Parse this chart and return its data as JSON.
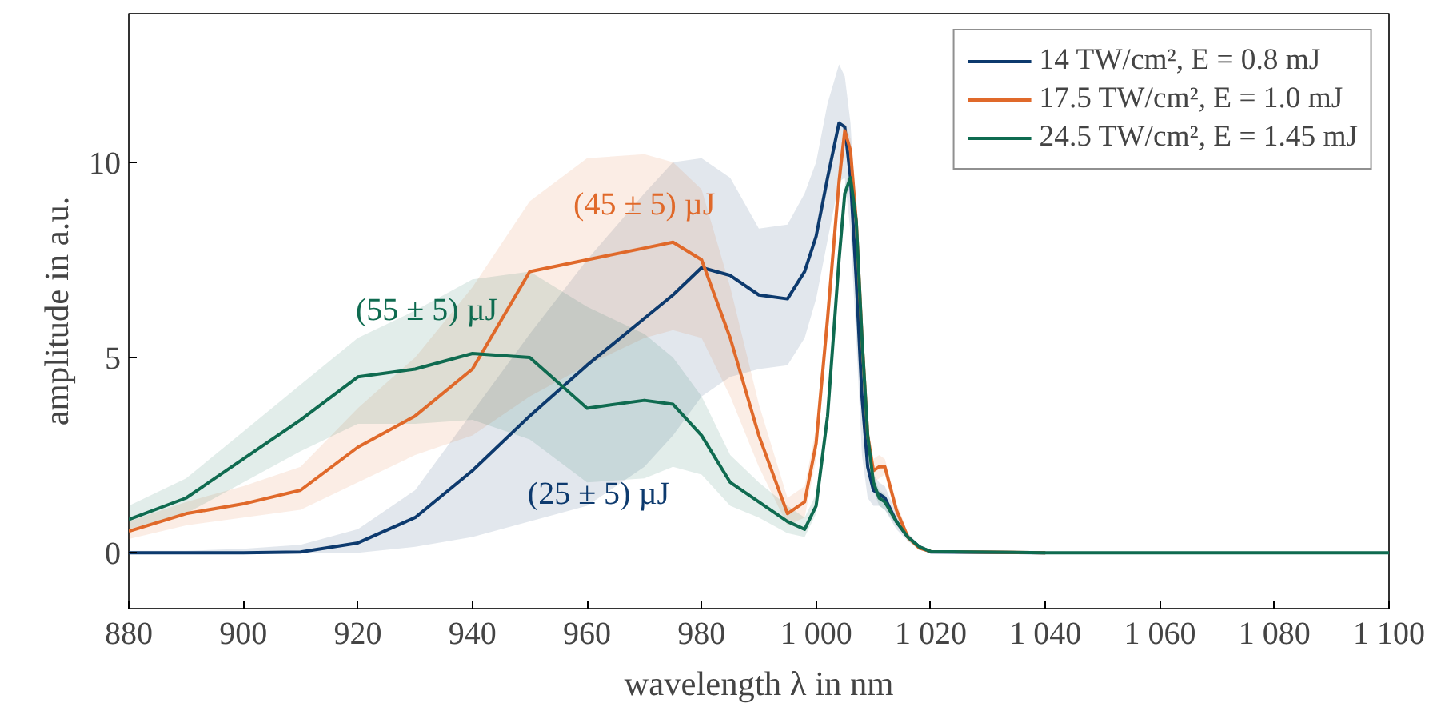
{
  "chart_data": {
    "type": "line",
    "xlabel": "wavelength λ in nm",
    "ylabel": "amplitude in a.u.",
    "x": [
      880,
      890,
      900,
      910,
      920,
      930,
      940,
      950,
      960,
      970,
      975,
      980,
      985,
      990,
      995,
      998,
      1000,
      1002,
      1004,
      1005,
      1006,
      1007,
      1008,
      1009,
      1010,
      1011,
      1012,
      1014,
      1016,
      1018,
      1020,
      1040,
      1060,
      1080,
      1100
    ],
    "series": [
      {
        "name": "14 TW/cm², E = 0.8 mJ",
        "color": "#0d3a6e",
        "values": [
          0,
          0,
          0,
          0.02,
          0.25,
          0.9,
          2.1,
          3.5,
          4.8,
          6.0,
          6.6,
          7.3,
          7.1,
          6.6,
          6.5,
          7.2,
          8.1,
          9.6,
          11.0,
          10.9,
          9.6,
          7.0,
          4.0,
          2.2,
          1.6,
          1.5,
          1.4,
          0.8,
          0.4,
          0.15,
          0.02,
          0,
          null,
          null,
          null
        ],
        "upper": [
          0.05,
          0.05,
          0.1,
          0.2,
          0.6,
          1.6,
          3.6,
          5.6,
          7.5,
          9.2,
          10.0,
          10.1,
          9.6,
          8.3,
          8.4,
          9.2,
          10.0,
          11.5,
          12.5,
          12.2,
          11.0,
          8.5,
          5.5,
          3.0,
          2.0,
          1.8,
          1.7,
          1.0,
          0.5,
          0.2,
          0.05,
          0,
          0,
          0,
          0
        ],
        "lower": [
          0,
          0,
          0,
          0,
          0,
          0.15,
          0.4,
          0.8,
          1.2,
          2.2,
          3.0,
          4.0,
          4.5,
          4.7,
          4.8,
          5.5,
          6.5,
          8.0,
          9.5,
          9.6,
          8.2,
          5.5,
          2.5,
          1.4,
          1.2,
          1.2,
          1.1,
          0.6,
          0.3,
          0.1,
          0,
          0,
          0,
          0,
          0
        ]
      },
      {
        "name": "17.5 TW/cm², E = 1.0 mJ",
        "color": "#e0692a",
        "values": [
          0.55,
          1.0,
          1.25,
          1.6,
          2.7,
          3.5,
          4.7,
          7.2,
          7.5,
          7.8,
          7.95,
          7.5,
          5.5,
          3.0,
          1.0,
          1.3,
          2.8,
          6.0,
          9.5,
          10.8,
          10.3,
          8.5,
          5.5,
          3.0,
          2.1,
          2.2,
          2.2,
          1.1,
          0.4,
          0.12,
          0.03,
          0,
          null,
          null,
          null
        ],
        "upper": [
          0.8,
          1.3,
          1.7,
          2.2,
          3.7,
          5.0,
          6.8,
          9.0,
          10.1,
          10.2,
          10.0,
          9.3,
          6.8,
          3.8,
          1.4,
          1.7,
          3.2,
          6.5,
          10.0,
          11.0,
          10.6,
          8.8,
          5.8,
          3.3,
          2.4,
          2.5,
          2.4,
          1.3,
          0.5,
          0.15,
          0.05,
          0,
          0,
          0,
          0
        ],
        "lower": [
          0.35,
          0.7,
          0.9,
          1.1,
          1.8,
          2.5,
          3.0,
          4.0,
          4.8,
          5.5,
          5.7,
          5.5,
          4.0,
          2.2,
          0.7,
          0.9,
          2.4,
          5.5,
          9.0,
          10.5,
          10.0,
          8.2,
          5.2,
          2.7,
          1.8,
          1.9,
          2.0,
          0.9,
          0.3,
          0.08,
          0,
          0,
          0,
          0,
          0
        ]
      },
      {
        "name": "24.5 TW/cm², E = 1.45 mJ",
        "color": "#0f6b50",
        "values": [
          0.85,
          1.4,
          2.4,
          3.4,
          4.5,
          4.7,
          5.1,
          5.0,
          3.7,
          3.9,
          3.8,
          3.0,
          1.8,
          1.3,
          0.8,
          0.6,
          1.2,
          3.5,
          7.5,
          9.2,
          9.6,
          8.5,
          5.5,
          3.0,
          1.8,
          1.4,
          1.3,
          0.8,
          0.4,
          0.15,
          0.03,
          0,
          0,
          0,
          0
        ],
        "upper": [
          1.2,
          1.9,
          3.1,
          4.3,
          5.5,
          6.2,
          7.0,
          7.2,
          6.3,
          5.6,
          5.0,
          4.0,
          2.5,
          1.8,
          1.2,
          0.9,
          1.5,
          3.8,
          7.8,
          9.4,
          9.8,
          8.7,
          5.8,
          3.2,
          2.0,
          1.6,
          1.5,
          0.9,
          0.45,
          0.17,
          0.05,
          0,
          0,
          0,
          0
        ],
        "lower": [
          0.6,
          1.0,
          1.8,
          2.6,
          3.3,
          3.3,
          3.4,
          2.9,
          1.8,
          1.9,
          2.2,
          2.0,
          1.2,
          0.9,
          0.5,
          0.4,
          1.0,
          3.2,
          7.2,
          9.0,
          9.4,
          8.3,
          5.2,
          2.8,
          1.6,
          1.2,
          1.1,
          0.7,
          0.35,
          0.12,
          0.01,
          0,
          0,
          0,
          0
        ]
      }
    ],
    "annotations": [
      {
        "text": "(25 ± 5) µJ",
        "x": 962,
        "y": 1.5
      },
      {
        "text": "(45 ± 5) µJ",
        "x": 970,
        "y": 8.9
      },
      {
        "text": "(55 ± 5) µJ",
        "x": 932,
        "y": 6.2
      }
    ],
    "xlim": [
      880,
      1100
    ],
    "ylim": [
      -1.43,
      13.8
    ],
    "xticks": [
      880,
      900,
      920,
      940,
      960,
      980,
      {
        "value": 1000,
        "label": "1 000"
      },
      {
        "value": 1020,
        "label": "1 020"
      },
      {
        "value": 1040,
        "label": "1 040"
      },
      {
        "value": 1060,
        "label": "1 060"
      },
      {
        "value": 1080,
        "label": "1 080"
      },
      {
        "value": 1100,
        "label": "1 100"
      }
    ],
    "yticks": [
      0,
      5,
      10
    ],
    "grid": false,
    "legend": "top right",
    "marker": "none",
    "line_style": "solid"
  }
}
